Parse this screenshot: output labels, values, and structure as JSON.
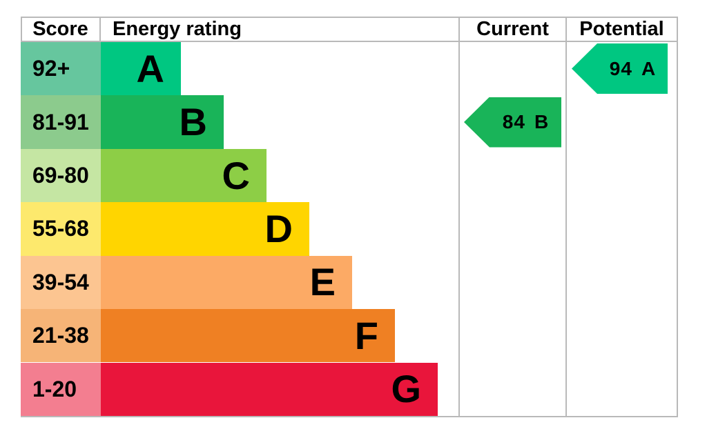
{
  "header": {
    "score": "Score",
    "energy_rating": "Energy rating",
    "current": "Current",
    "potential": "Potential"
  },
  "chart_data": {
    "type": "bar",
    "subtype": "epc_energy_rating_chart",
    "columns": [
      "Score",
      "Energy rating",
      "Current",
      "Potential"
    ],
    "bands": [
      {
        "letter": "A",
        "score_range": "92+",
        "color": "#00c781",
        "score_bg": "#66c69e"
      },
      {
        "letter": "B",
        "score_range": "81-91",
        "color": "#19b459",
        "score_bg": "#8ccb8d"
      },
      {
        "letter": "C",
        "score_range": "69-80",
        "color": "#8dce46",
        "score_bg": "#c5e6a3"
      },
      {
        "letter": "D",
        "score_range": "55-68",
        "color": "#ffd500",
        "score_bg": "#fde96d"
      },
      {
        "letter": "E",
        "score_range": "39-54",
        "color": "#fcaa65",
        "score_bg": "#fcc591"
      },
      {
        "letter": "F",
        "score_range": "21-38",
        "color": "#ef8023",
        "score_bg": "#f6b477"
      },
      {
        "letter": "G",
        "score_range": "1-20",
        "color": "#e9153b",
        "score_bg": "#f37e90"
      }
    ],
    "current": {
      "score": "84",
      "band": "B",
      "color": "#19b459"
    },
    "potential": {
      "score": "94",
      "band": "A",
      "color": "#00c781"
    }
  }
}
